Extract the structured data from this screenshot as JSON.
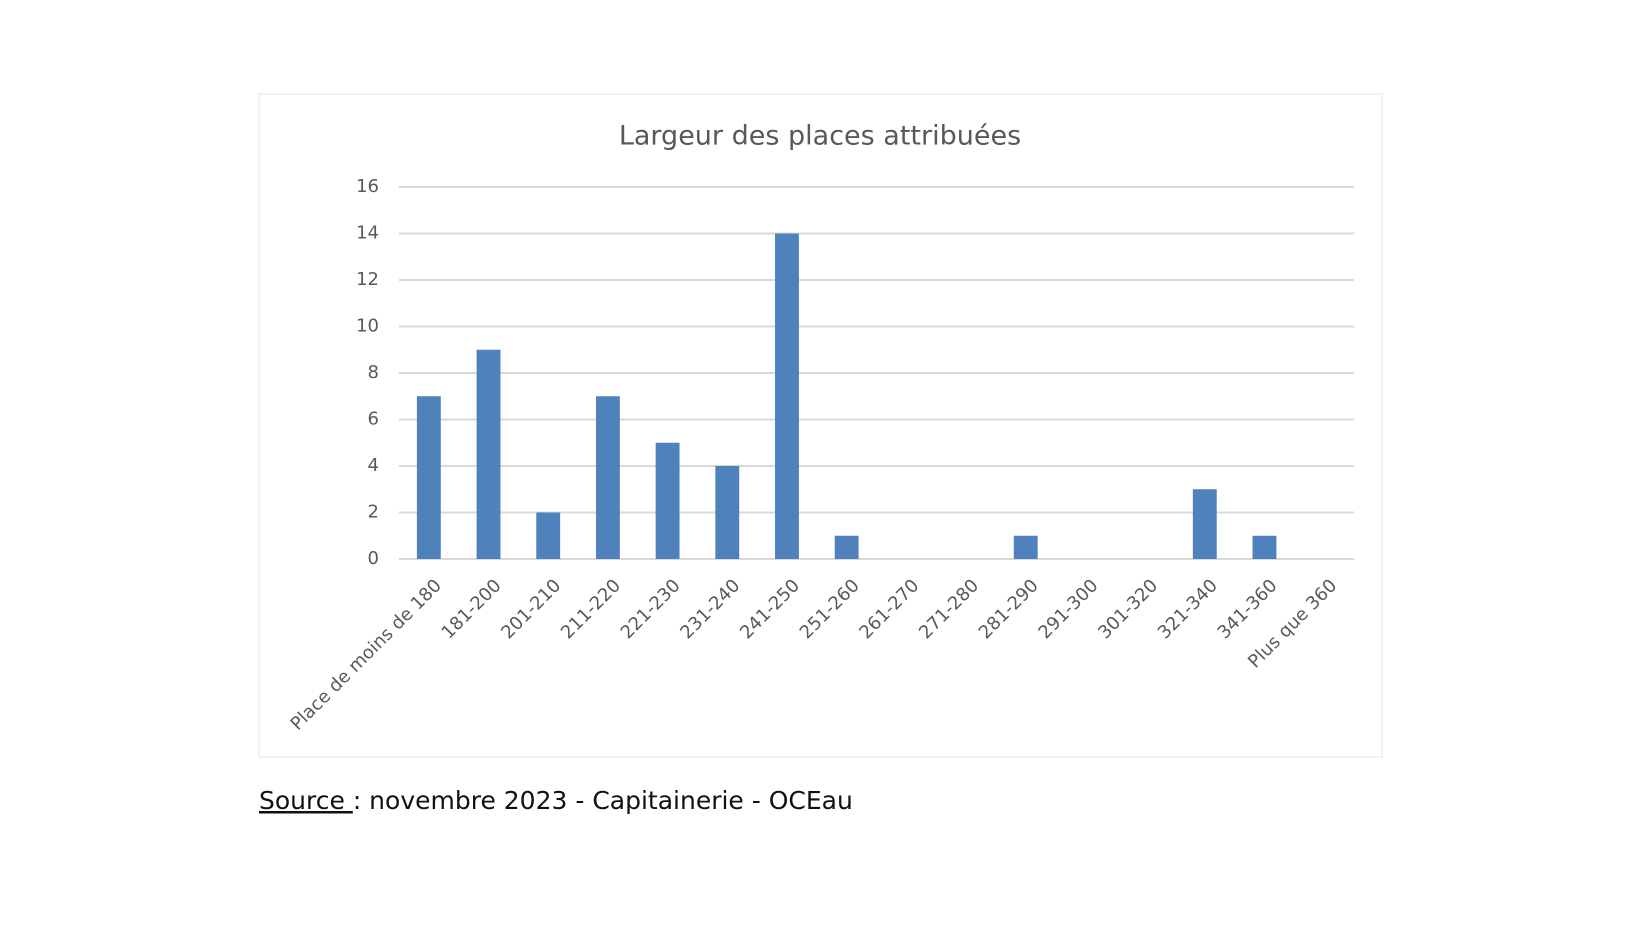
{
  "chart_data": {
    "type": "bar",
    "title": "Largeur des places attribuées",
    "categories": [
      "Place de moins de 180",
      "181-200",
      "201-210",
      "211-220",
      "221-230",
      "231-240",
      "241-250",
      "251-260",
      "261-270",
      "271-280",
      "281-290",
      "291-300",
      "301-320",
      "321-340",
      "341-360",
      "Plus que 360"
    ],
    "values": [
      7,
      9,
      2,
      7,
      5,
      4,
      14,
      1,
      0,
      0,
      1,
      0,
      0,
      3,
      1,
      0
    ],
    "color": "#4f81bd",
    "ylim": [
      0,
      16
    ],
    "yticks": [
      0,
      2,
      4,
      6,
      8,
      10,
      12,
      14,
      16
    ],
    "grid": true
  },
  "source": {
    "label": "Source ",
    "text": ": novembre 2023 - Capitainerie - OCEau"
  }
}
